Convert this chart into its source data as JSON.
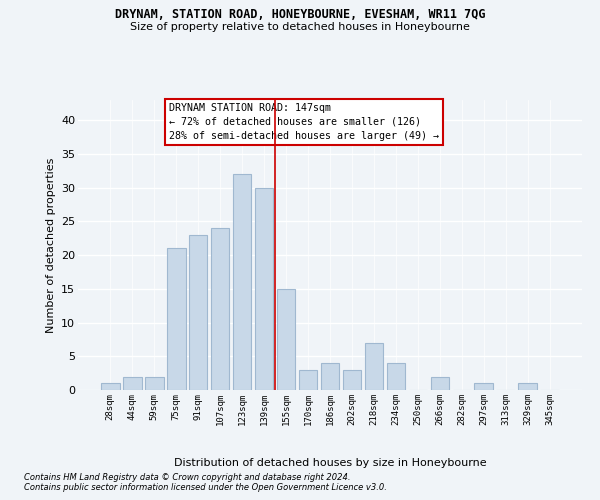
{
  "title": "DRYNAM, STATION ROAD, HONEYBOURNE, EVESHAM, WR11 7QG",
  "subtitle": "Size of property relative to detached houses in Honeybourne",
  "xlabel": "Distribution of detached houses by size in Honeybourne",
  "ylabel": "Number of detached properties",
  "footnote1": "Contains HM Land Registry data © Crown copyright and database right 2024.",
  "footnote2": "Contains public sector information licensed under the Open Government Licence v3.0.",
  "annotation_title": "DRYNAM STATION ROAD: 147sqm",
  "annotation_line1": "← 72% of detached houses are smaller (126)",
  "annotation_line2": "28% of semi-detached houses are larger (49) →",
  "bar_color": "#c8d8e8",
  "bar_edge_color": "#a0b8d0",
  "bg_color": "#f0f4f8",
  "grid_color": "#ffffff",
  "annotation_box_color": "#ffffff",
  "annotation_border_color": "#cc0000",
  "vline_color": "#cc0000",
  "categories": [
    "28sqm",
    "44sqm",
    "59sqm",
    "75sqm",
    "91sqm",
    "107sqm",
    "123sqm",
    "139sqm",
    "155sqm",
    "170sqm",
    "186sqm",
    "202sqm",
    "218sqm",
    "234sqm",
    "250sqm",
    "266sqm",
    "282sqm",
    "297sqm",
    "313sqm",
    "329sqm",
    "345sqm"
  ],
  "values": [
    1,
    2,
    2,
    21,
    23,
    24,
    32,
    30,
    15,
    3,
    4,
    3,
    7,
    4,
    0,
    2,
    0,
    1,
    0,
    1,
    0
  ],
  "ylim": [
    0,
    43
  ],
  "yticks": [
    0,
    5,
    10,
    15,
    20,
    25,
    30,
    35,
    40
  ],
  "vline_x": 7.5
}
